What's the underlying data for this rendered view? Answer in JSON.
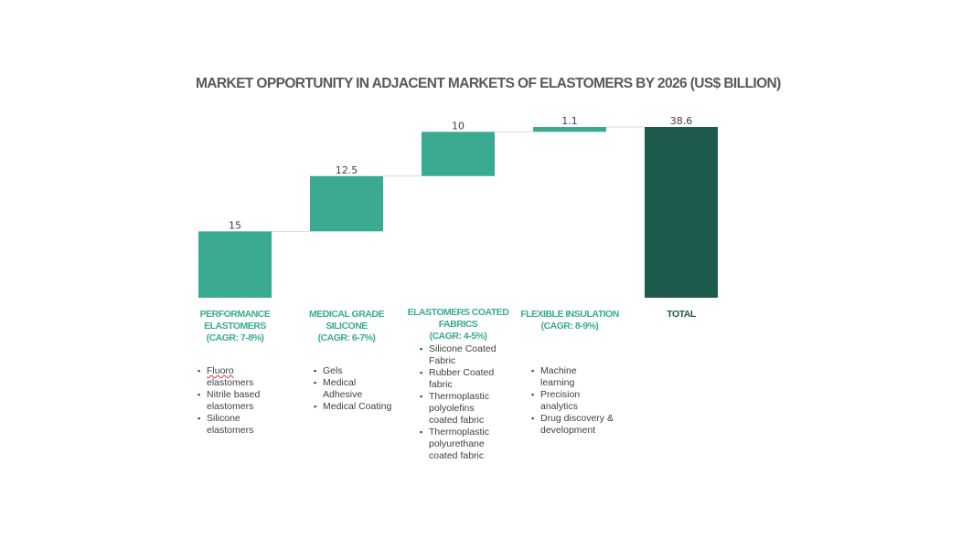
{
  "title": "MARKET OPPORTUNITY IN ADJACENT MARKETS OF ELASTOMERS BY 2026 (US$ BILLION)",
  "colors": {
    "step": "#3aab92",
    "total": "#1e5a4e",
    "connector": "#d9d9d9",
    "label": "#3aab92",
    "total_label": "#1e5a4e"
  },
  "chart_data": {
    "type": "waterfall",
    "categories": [
      "PERFORMANCE ELASTOMERS",
      "MEDICAL GRADE SILICONE",
      "ELASTOMERS COATED FABRICS",
      "FLEXIBLE INSULATION",
      "TOTAL"
    ],
    "values": [
      15,
      12.5,
      10,
      1.1,
      38.6
    ],
    "value_labels": [
      "15",
      "12.5",
      "10",
      "1.1",
      "38.6"
    ],
    "total_index": 4,
    "ylim": [
      0,
      38.6
    ],
    "grid": false,
    "legend": "none"
  },
  "categories": [
    {
      "lines": [
        "PERFORMANCE",
        "ELASTOMERS",
        "(CAGR: 7-8%)"
      ],
      "bullets": [
        [
          "Fluoro",
          "elastomers"
        ],
        [
          "Nitrile based",
          "elastomers"
        ],
        [
          "Silicone",
          "elastomers"
        ]
      ]
    },
    {
      "lines": [
        "MEDICAL GRADE",
        "SILICONE",
        "(CAGR: 6-7%)"
      ],
      "bullets": [
        [
          "Gels"
        ],
        [
          "Medical",
          "Adhesive"
        ],
        [
          "Medical Coating"
        ]
      ]
    },
    {
      "lines": [
        "ELASTOMERS COATED",
        "FABRICS",
        "(CAGR: 4-5%)"
      ],
      "bullets": [
        [
          "Silicone Coated",
          "Fabric"
        ],
        [
          "Rubber Coated",
          "fabric"
        ],
        [
          "Thermoplastic",
          "polyolefins",
          "coated fabric"
        ],
        [
          "Thermoplastic",
          "polyurethane",
          "coated fabric"
        ]
      ]
    },
    {
      "lines": [
        "FLEXIBLE INSULATION",
        "(CAGR: 8-9%)"
      ],
      "bullets": [
        [
          "Machine",
          "learning"
        ],
        [
          "Precision",
          "analytics"
        ],
        [
          "Drug discovery &",
          "development"
        ]
      ]
    },
    {
      "lines": [
        "TOTAL"
      ],
      "bullets": []
    }
  ]
}
